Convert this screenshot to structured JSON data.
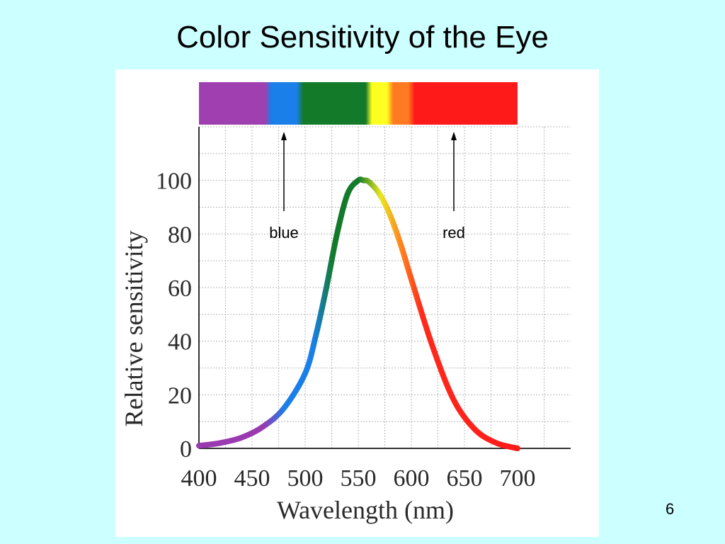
{
  "slide": {
    "title": "Color Sensitivity of the Eye",
    "page_number": "6",
    "background_color": "#ccffff"
  },
  "chart_data": {
    "type": "line",
    "xlabel": "Wavelength (nm)",
    "ylabel": "Relative sensitivity",
    "xlim": [
      400,
      750
    ],
    "ylim": [
      0,
      120
    ],
    "xticks": [
      400,
      450,
      500,
      550,
      600,
      650,
      700
    ],
    "yticks": [
      0,
      20,
      40,
      60,
      80,
      100
    ],
    "grid": true,
    "series": [
      {
        "x": [
          400,
          420,
          440,
          460,
          480,
          500,
          510,
          520,
          530,
          540,
          550,
          555,
          560,
          570,
          580,
          590,
          600,
          620,
          640,
          660,
          680,
          700
        ],
        "values": [
          1,
          2,
          4,
          8,
          15,
          28,
          42,
          60,
          80,
          95,
          100,
          100,
          99.5,
          95,
          87,
          76,
          63,
          38,
          18,
          7,
          2,
          0
        ]
      }
    ],
    "spectrum_band": [
      {
        "from": 400,
        "to": 465,
        "color": "#a040b0"
      },
      {
        "from": 465,
        "to": 495,
        "color": "#1a7fe8"
      },
      {
        "from": 495,
        "to": 560,
        "color": "#137a2a"
      },
      {
        "from": 560,
        "to": 580,
        "color": "#ffff20"
      },
      {
        "from": 580,
        "to": 600,
        "color": "#ff7a20"
      },
      {
        "from": 600,
        "to": 700,
        "color": "#ff1a1a"
      }
    ],
    "annotations": [
      {
        "text": "blue",
        "x": 480
      },
      {
        "text": "red",
        "x": 640
      }
    ]
  }
}
